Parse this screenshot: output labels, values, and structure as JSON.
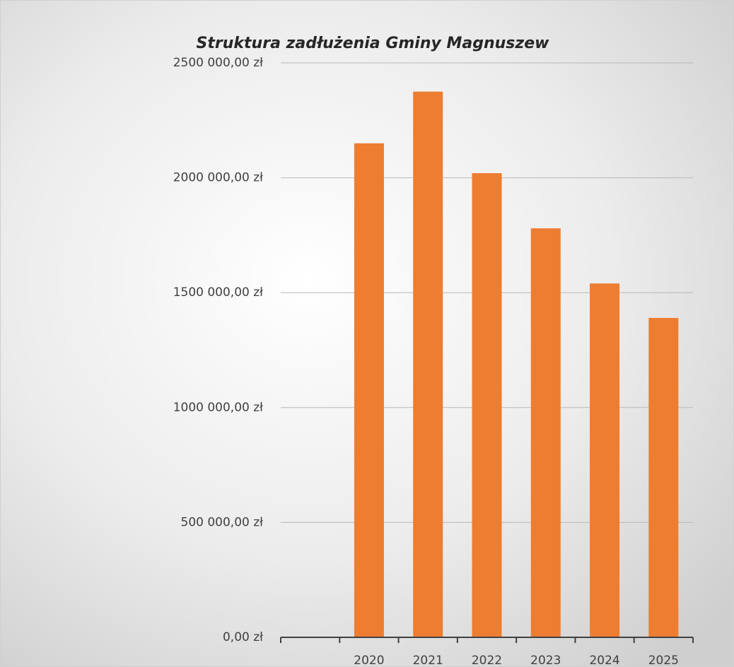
{
  "chart_data": {
    "type": "bar",
    "title": "Struktura zadłużenia Gminy Magnuszew",
    "categories": [
      null,
      "2020",
      "2021",
      "2022",
      "2023",
      "2024",
      "2025"
    ],
    "values": [
      null,
      2150000,
      2375000,
      2020000,
      1780000,
      1540000,
      1390000
    ],
    "color": "#ed7d31",
    "ylim": [
      0,
      2500000
    ],
    "yticks": [
      {
        "value": 0,
        "label": "0,00 zł"
      },
      {
        "value": 500000,
        "label": "500 000,00 zł"
      },
      {
        "value": 1000000,
        "label": "1000 000,00 zł"
      },
      {
        "value": 1500000,
        "label": "1500 000,00 zł"
      },
      {
        "value": 2000000,
        "label": "2000 000,00 zł"
      },
      {
        "value": 2500000,
        "label": "2500 000,00 zł"
      }
    ],
    "grid": true
  }
}
